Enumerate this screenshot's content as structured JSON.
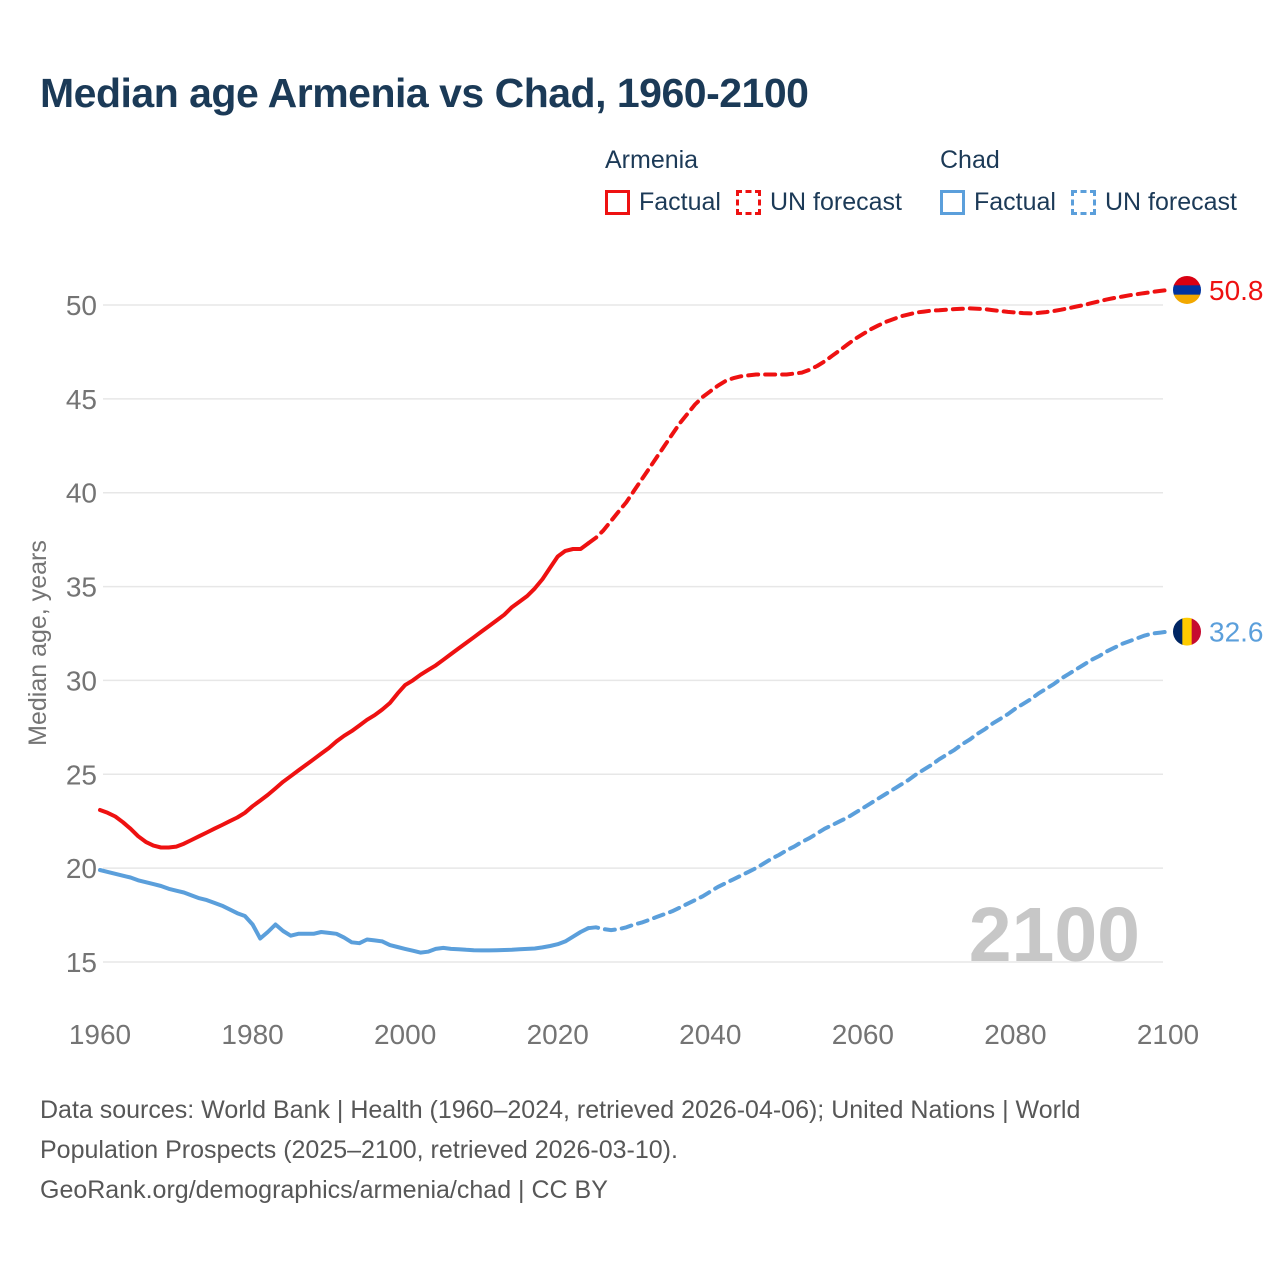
{
  "title": "Median age Armenia vs Chad, 1960-2100",
  "legend": {
    "armenia_label": "Armenia",
    "chad_label": "Chad",
    "factual_label": "Factual",
    "forecast_label": "UN forecast"
  },
  "watermark": "2100",
  "footer": {
    "lines": [
      "Data sources: World Bank | Health (1960–2024, retrieved 2026-04-06); United Nations | World",
      "Population Prospects (2025–2100, retrieved 2026-03-10).",
      "GeoRank.org/demographics/armenia/chad | CC BY"
    ]
  },
  "colors": {
    "armenia": "#ee1111",
    "chad": "#5b9fdb",
    "grid": "#e7e7e7",
    "tick": "#747474",
    "axis_title": "#747474",
    "watermark": "#c7c7c7",
    "title": "#1b3a57",
    "footer": "#575757",
    "flags": {
      "armenia": {
        "orientation": "horizontal",
        "stripes": [
          "#D90012",
          "#0033A0",
          "#F2A800"
        ]
      },
      "chad": {
        "orientation": "vertical",
        "stripes": [
          "#002664",
          "#FECB00",
          "#C60C30"
        ]
      }
    }
  },
  "chart_data": {
    "type": "line",
    "title": "Median age Armenia vs Chad, 1960-2100",
    "xlabel": "",
    "ylabel": "Median age, years",
    "xlim": [
      1960,
      2100
    ],
    "ylim": [
      15,
      50
    ],
    "x_ticks": [
      1960,
      1980,
      2000,
      2020,
      2040,
      2060,
      2080,
      2100
    ],
    "y_ticks": [
      15,
      20,
      25,
      30,
      35,
      40,
      45,
      50
    ],
    "grid": "horizontal",
    "legend_position": "top-right",
    "end_markers": [
      {
        "series": "Armenia",
        "flag": "armenia",
        "value": 50.8,
        "label": "50.8"
      },
      {
        "series": "Chad",
        "flag": "chad",
        "value": 32.6,
        "label": "32.6"
      }
    ],
    "series": [
      {
        "name": "Armenia Factual",
        "color_key": "armenia",
        "style": "solid",
        "points": [
          [
            1960,
            23.1
          ],
          [
            1961,
            22.95
          ],
          [
            1962,
            22.75
          ],
          [
            1963,
            22.45
          ],
          [
            1964,
            22.1
          ],
          [
            1965,
            21.7
          ],
          [
            1966,
            21.4
          ],
          [
            1967,
            21.2
          ],
          [
            1968,
            21.1
          ],
          [
            1969,
            21.1
          ],
          [
            1970,
            21.15
          ],
          [
            1971,
            21.3
          ],
          [
            1972,
            21.5
          ],
          [
            1973,
            21.7
          ],
          [
            1974,
            21.9
          ],
          [
            1975,
            22.1
          ],
          [
            1976,
            22.3
          ],
          [
            1977,
            22.5
          ],
          [
            1978,
            22.7
          ],
          [
            1979,
            22.95
          ],
          [
            1980,
            23.3
          ],
          [
            1981,
            23.6
          ],
          [
            1982,
            23.9
          ],
          [
            1983,
            24.25
          ],
          [
            1984,
            24.6
          ],
          [
            1985,
            24.9
          ],
          [
            1986,
            25.2
          ],
          [
            1987,
            25.5
          ],
          [
            1988,
            25.8
          ],
          [
            1989,
            26.1
          ],
          [
            1990,
            26.4
          ],
          [
            1991,
            26.75
          ],
          [
            1992,
            27.05
          ],
          [
            1993,
            27.3
          ],
          [
            1994,
            27.6
          ],
          [
            1995,
            27.9
          ],
          [
            1996,
            28.15
          ],
          [
            1997,
            28.45
          ],
          [
            1998,
            28.8
          ],
          [
            1999,
            29.3
          ],
          [
            2000,
            29.75
          ],
          [
            2001,
            30.0
          ],
          [
            2002,
            30.3
          ],
          [
            2003,
            30.55
          ],
          [
            2004,
            30.8
          ],
          [
            2005,
            31.1
          ],
          [
            2006,
            31.4
          ],
          [
            2007,
            31.7
          ],
          [
            2008,
            32.0
          ],
          [
            2009,
            32.3
          ],
          [
            2010,
            32.6
          ],
          [
            2011,
            32.9
          ],
          [
            2012,
            33.2
          ],
          [
            2013,
            33.5
          ],
          [
            2014,
            33.9
          ],
          [
            2015,
            34.2
          ],
          [
            2016,
            34.5
          ],
          [
            2017,
            34.9
          ],
          [
            2018,
            35.4
          ],
          [
            2019,
            36.0
          ],
          [
            2020,
            36.6
          ],
          [
            2021,
            36.9
          ],
          [
            2022,
            37.0
          ],
          [
            2023,
            37.0
          ],
          [
            2024,
            37.3
          ]
        ]
      },
      {
        "name": "Armenia UN forecast",
        "color_key": "armenia",
        "style": "dashed",
        "points": [
          [
            2024,
            37.3
          ],
          [
            2025,
            37.6
          ],
          [
            2026,
            38.0
          ],
          [
            2027,
            38.5
          ],
          [
            2028,
            39.0
          ],
          [
            2029,
            39.5
          ],
          [
            2030,
            40.1
          ],
          [
            2031,
            40.7
          ],
          [
            2032,
            41.3
          ],
          [
            2033,
            41.9
          ],
          [
            2034,
            42.5
          ],
          [
            2035,
            43.1
          ],
          [
            2036,
            43.7
          ],
          [
            2037,
            44.2
          ],
          [
            2038,
            44.7
          ],
          [
            2039,
            45.1
          ],
          [
            2040,
            45.4
          ],
          [
            2041,
            45.7
          ],
          [
            2042,
            45.95
          ],
          [
            2043,
            46.1
          ],
          [
            2044,
            46.2
          ],
          [
            2045,
            46.25
          ],
          [
            2046,
            46.3
          ],
          [
            2048,
            46.3
          ],
          [
            2050,
            46.3
          ],
          [
            2052,
            46.4
          ],
          [
            2053,
            46.55
          ],
          [
            2054,
            46.75
          ],
          [
            2055,
            47.0
          ],
          [
            2056,
            47.3
          ],
          [
            2057,
            47.6
          ],
          [
            2058,
            47.9
          ],
          [
            2059,
            48.2
          ],
          [
            2060,
            48.45
          ],
          [
            2061,
            48.7
          ],
          [
            2062,
            48.9
          ],
          [
            2063,
            49.1
          ],
          [
            2064,
            49.25
          ],
          [
            2065,
            49.4
          ],
          [
            2066,
            49.5
          ],
          [
            2067,
            49.6
          ],
          [
            2068,
            49.65
          ],
          [
            2069,
            49.7
          ],
          [
            2070,
            49.72
          ],
          [
            2071,
            49.75
          ],
          [
            2072,
            49.78
          ],
          [
            2073,
            49.8
          ],
          [
            2074,
            49.82
          ],
          [
            2075,
            49.8
          ],
          [
            2076,
            49.78
          ],
          [
            2077,
            49.73
          ],
          [
            2078,
            49.68
          ],
          [
            2079,
            49.63
          ],
          [
            2080,
            49.6
          ],
          [
            2081,
            49.57
          ],
          [
            2082,
            49.55
          ],
          [
            2083,
            49.58
          ],
          [
            2084,
            49.62
          ],
          [
            2085,
            49.68
          ],
          [
            2086,
            49.75
          ],
          [
            2087,
            49.83
          ],
          [
            2088,
            49.92
          ],
          [
            2089,
            50.0
          ],
          [
            2090,
            50.1
          ],
          [
            2091,
            50.2
          ],
          [
            2092,
            50.3
          ],
          [
            2093,
            50.38
          ],
          [
            2094,
            50.45
          ],
          [
            2095,
            50.52
          ],
          [
            2096,
            50.58
          ],
          [
            2097,
            50.64
          ],
          [
            2098,
            50.7
          ],
          [
            2099,
            50.75
          ],
          [
            2100,
            50.8
          ]
        ]
      },
      {
        "name": "Chad Factual",
        "color_key": "chad",
        "style": "solid",
        "points": [
          [
            1960,
            19.9
          ],
          [
            1961,
            19.8
          ],
          [
            1962,
            19.7
          ],
          [
            1963,
            19.6
          ],
          [
            1964,
            19.5
          ],
          [
            1965,
            19.35
          ],
          [
            1966,
            19.25
          ],
          [
            1967,
            19.15
          ],
          [
            1968,
            19.05
          ],
          [
            1969,
            18.9
          ],
          [
            1970,
            18.8
          ],
          [
            1971,
            18.7
          ],
          [
            1972,
            18.55
          ],
          [
            1973,
            18.4
          ],
          [
            1974,
            18.3
          ],
          [
            1975,
            18.15
          ],
          [
            1976,
            18.0
          ],
          [
            1977,
            17.8
          ],
          [
            1978,
            17.6
          ],
          [
            1979,
            17.45
          ],
          [
            1980,
            17.0
          ],
          [
            1981,
            16.25
          ],
          [
            1982,
            16.6
          ],
          [
            1983,
            17.0
          ],
          [
            1984,
            16.65
          ],
          [
            1985,
            16.4
          ],
          [
            1986,
            16.5
          ],
          [
            1987,
            16.5
          ],
          [
            1988,
            16.5
          ],
          [
            1989,
            16.6
          ],
          [
            1990,
            16.55
          ],
          [
            1991,
            16.5
          ],
          [
            1992,
            16.3
          ],
          [
            1993,
            16.05
          ],
          [
            1994,
            16.0
          ],
          [
            1995,
            16.2
          ],
          [
            1996,
            16.15
          ],
          [
            1997,
            16.1
          ],
          [
            1998,
            15.9
          ],
          [
            1999,
            15.8
          ],
          [
            2000,
            15.7
          ],
          [
            2001,
            15.6
          ],
          [
            2002,
            15.5
          ],
          [
            2003,
            15.55
          ],
          [
            2004,
            15.7
          ],
          [
            2005,
            15.75
          ],
          [
            2006,
            15.7
          ],
          [
            2007,
            15.68
          ],
          [
            2008,
            15.65
          ],
          [
            2009,
            15.63
          ],
          [
            2010,
            15.62
          ],
          [
            2011,
            15.62
          ],
          [
            2012,
            15.63
          ],
          [
            2013,
            15.64
          ],
          [
            2014,
            15.65
          ],
          [
            2015,
            15.68
          ],
          [
            2016,
            15.7
          ],
          [
            2017,
            15.72
          ],
          [
            2018,
            15.78
          ],
          [
            2019,
            15.85
          ],
          [
            2020,
            15.95
          ],
          [
            2021,
            16.1
          ],
          [
            2022,
            16.35
          ],
          [
            2023,
            16.6
          ],
          [
            2024,
            16.8
          ]
        ]
      },
      {
        "name": "Chad UN forecast",
        "color_key": "chad",
        "style": "dashed",
        "points": [
          [
            2024,
            16.8
          ],
          [
            2025,
            16.85
          ],
          [
            2026,
            16.75
          ],
          [
            2027,
            16.7
          ],
          [
            2028,
            16.75
          ],
          [
            2029,
            16.85
          ],
          [
            2030,
            17.0
          ],
          [
            2031,
            17.1
          ],
          [
            2032,
            17.25
          ],
          [
            2033,
            17.4
          ],
          [
            2034,
            17.55
          ],
          [
            2035,
            17.7
          ],
          [
            2036,
            17.9
          ],
          [
            2037,
            18.1
          ],
          [
            2038,
            18.3
          ],
          [
            2039,
            18.5
          ],
          [
            2040,
            18.75
          ],
          [
            2041,
            19.0
          ],
          [
            2042,
            19.2
          ],
          [
            2043,
            19.4
          ],
          [
            2044,
            19.6
          ],
          [
            2045,
            19.8
          ],
          [
            2046,
            20.0
          ],
          [
            2047,
            20.25
          ],
          [
            2048,
            20.5
          ],
          [
            2049,
            20.7
          ],
          [
            2050,
            20.95
          ],
          [
            2051,
            21.15
          ],
          [
            2052,
            21.4
          ],
          [
            2053,
            21.6
          ],
          [
            2054,
            21.85
          ],
          [
            2055,
            22.1
          ],
          [
            2056,
            22.3
          ],
          [
            2057,
            22.5
          ],
          [
            2058,
            22.7
          ],
          [
            2059,
            22.95
          ],
          [
            2060,
            23.2
          ],
          [
            2061,
            23.45
          ],
          [
            2062,
            23.7
          ],
          [
            2063,
            23.95
          ],
          [
            2064,
            24.2
          ],
          [
            2065,
            24.45
          ],
          [
            2066,
            24.7
          ],
          [
            2067,
            25.0
          ],
          [
            2068,
            25.25
          ],
          [
            2069,
            25.5
          ],
          [
            2070,
            25.8
          ],
          [
            2071,
            26.05
          ],
          [
            2072,
            26.3
          ],
          [
            2073,
            26.6
          ],
          [
            2074,
            26.85
          ],
          [
            2075,
            27.15
          ],
          [
            2076,
            27.4
          ],
          [
            2077,
            27.7
          ],
          [
            2078,
            27.95
          ],
          [
            2079,
            28.2
          ],
          [
            2080,
            28.5
          ],
          [
            2081,
            28.75
          ],
          [
            2082,
            29.0
          ],
          [
            2083,
            29.3
          ],
          [
            2084,
            29.55
          ],
          [
            2085,
            29.8
          ],
          [
            2086,
            30.1
          ],
          [
            2087,
            30.35
          ],
          [
            2088,
            30.6
          ],
          [
            2089,
            30.85
          ],
          [
            2090,
            31.1
          ],
          [
            2091,
            31.3
          ],
          [
            2092,
            31.55
          ],
          [
            2093,
            31.75
          ],
          [
            2094,
            31.95
          ],
          [
            2095,
            32.1
          ],
          [
            2096,
            32.25
          ],
          [
            2097,
            32.4
          ],
          [
            2098,
            32.5
          ],
          [
            2099,
            32.55
          ],
          [
            2100,
            32.6
          ]
        ]
      }
    ]
  }
}
